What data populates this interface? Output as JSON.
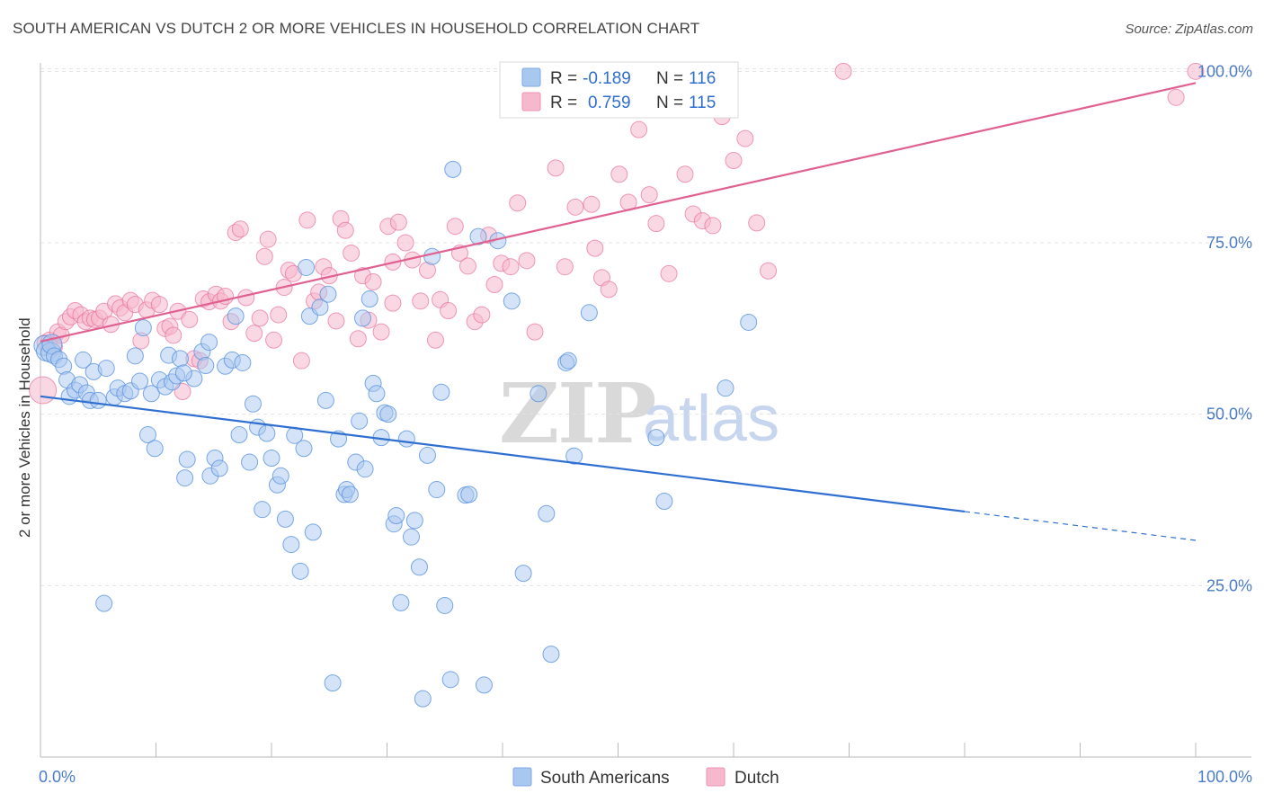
{
  "header": {
    "title": "SOUTH AMERICAN VS DUTCH 2 OR MORE VEHICLES IN HOUSEHOLD CORRELATION CHART",
    "source": "Source: ZipAtlas.com"
  },
  "watermark": {
    "zip": "ZIP",
    "atlas": "atlas"
  },
  "legend": {
    "rows": [
      {
        "r_label": "R =",
        "r_value": "-0.189",
        "n_label": "N =",
        "n_value": "116",
        "color": "#a9c8f0"
      },
      {
        "r_label": "R =",
        "r_value": "0.759",
        "n_label": "N =",
        "n_value": "115",
        "color": "#f6b8cc"
      }
    ]
  },
  "bottom_legend": [
    {
      "label": "South Americans",
      "color": "#a9c8f0"
    },
    {
      "label": "Dutch",
      "color": "#f6b8cc"
    }
  ],
  "chart_data": {
    "type": "scatter",
    "title": "SOUTH AMERICAN VS DUTCH 2 OR MORE VEHICLES IN HOUSEHOLD CORRELATION CHART",
    "xlabel": "",
    "ylabel": "2 or more Vehicles in Household",
    "xlim": [
      0,
      100
    ],
    "ylim": [
      0,
      103
    ],
    "x_tick_labels": [
      "0.0%",
      "100.0%"
    ],
    "y_tick_labels": [
      "25.0%",
      "50.0%",
      "75.0%",
      "100.0%"
    ],
    "y_ticks": [
      25,
      50,
      75,
      100
    ],
    "grid": true,
    "colors": {
      "south_american": "#5b93e0",
      "south_american_fill": "#a9c8f0",
      "dutch": "#e8709a",
      "dutch_fill": "#f6b8cc",
      "blue_line": "#2f6fd0",
      "pink_line": "#e0608f"
    },
    "series": [
      {
        "name": "South Americans",
        "trend": {
          "x": [
            0,
            80
          ],
          "y": [
            52.6,
            35.8
          ],
          "dashed_to": [
            100,
            31.6
          ]
        },
        "points": [
          [
            0.3,
            60.0
          ],
          [
            0.5,
            59.2
          ],
          [
            0.9,
            59.0
          ],
          [
            1.0,
            60.2
          ],
          [
            1.2,
            58.5
          ],
          [
            1.6,
            58.0
          ],
          [
            2.0,
            57.0
          ],
          [
            2.3,
            55.0
          ],
          [
            2.5,
            52.6
          ],
          [
            3.0,
            53.5
          ],
          [
            3.4,
            54.3
          ],
          [
            3.7,
            57.9
          ],
          [
            4.0,
            53.1
          ],
          [
            4.3,
            52.0
          ],
          [
            4.6,
            56.2
          ],
          [
            5.0,
            52.0
          ],
          [
            5.7,
            56.7
          ],
          [
            6.4,
            52.5
          ],
          [
            6.7,
            53.8
          ],
          [
            7.3,
            53.0
          ],
          [
            7.8,
            53.4
          ],
          [
            8.2,
            58.5
          ],
          [
            8.6,
            54.8
          ],
          [
            8.9,
            62.6
          ],
          [
            9.3,
            47.0
          ],
          [
            9.6,
            53.0
          ],
          [
            9.9,
            45.0
          ],
          [
            10.3,
            55.0
          ],
          [
            10.8,
            54.0
          ],
          [
            11.1,
            58.6
          ],
          [
            11.4,
            54.7
          ],
          [
            11.8,
            55.6
          ],
          [
            12.1,
            58.1
          ],
          [
            12.5,
            40.7
          ],
          [
            12.7,
            43.4
          ],
          [
            13.3,
            55.2
          ],
          [
            14.0,
            59.1
          ],
          [
            14.3,
            57.1
          ],
          [
            14.6,
            60.5
          ],
          [
            14.7,
            41.0
          ],
          [
            15.1,
            43.6
          ],
          [
            15.5,
            42.1
          ],
          [
            16.0,
            57.0
          ],
          [
            16.6,
            57.9
          ],
          [
            16.9,
            64.3
          ],
          [
            17.2,
            47.0
          ],
          [
            17.5,
            57.5
          ],
          [
            18.1,
            43.0
          ],
          [
            18.4,
            51.5
          ],
          [
            18.8,
            48.1
          ],
          [
            19.2,
            36.1
          ],
          [
            19.6,
            47.2
          ],
          [
            20.0,
            43.6
          ],
          [
            20.5,
            39.7
          ],
          [
            20.8,
            41.0
          ],
          [
            21.2,
            34.7
          ],
          [
            21.7,
            31.0
          ],
          [
            22.0,
            46.9
          ],
          [
            22.5,
            27.1
          ],
          [
            22.8,
            45.0
          ],
          [
            23.0,
            71.4
          ],
          [
            23.3,
            64.3
          ],
          [
            23.6,
            32.8
          ],
          [
            24.2,
            65.6
          ],
          [
            24.7,
            52.0
          ],
          [
            24.9,
            67.5
          ],
          [
            25.3,
            10.8
          ],
          [
            25.8,
            46.4
          ],
          [
            26.3,
            38.3
          ],
          [
            26.5,
            39.0
          ],
          [
            26.8,
            38.3
          ],
          [
            27.3,
            43.0
          ],
          [
            27.6,
            49.0
          ],
          [
            27.9,
            64.0
          ],
          [
            28.1,
            42.0
          ],
          [
            28.5,
            66.8
          ],
          [
            28.8,
            54.5
          ],
          [
            29.1,
            53.0
          ],
          [
            29.5,
            46.6
          ],
          [
            29.8,
            50.2
          ],
          [
            30.1,
            50.0
          ],
          [
            30.6,
            34.0
          ],
          [
            30.8,
            35.2
          ],
          [
            31.2,
            22.5
          ],
          [
            31.7,
            46.4
          ],
          [
            32.1,
            32.1
          ],
          [
            32.4,
            34.5
          ],
          [
            32.8,
            27.7
          ],
          [
            33.1,
            8.5
          ],
          [
            33.5,
            44.0
          ],
          [
            33.9,
            73.0
          ],
          [
            34.3,
            39.0
          ],
          [
            34.7,
            53.2
          ],
          [
            35.0,
            22.1
          ],
          [
            35.5,
            11.3
          ],
          [
            35.7,
            85.7
          ],
          [
            36.8,
            38.2
          ],
          [
            37.1,
            38.3
          ],
          [
            37.9,
            75.9
          ],
          [
            38.4,
            10.5
          ],
          [
            39.6,
            75.3
          ],
          [
            40.8,
            66.5
          ],
          [
            41.8,
            26.8
          ],
          [
            43.1,
            53.0
          ],
          [
            43.8,
            35.5
          ],
          [
            44.2,
            15.0
          ],
          [
            45.5,
            57.5
          ],
          [
            45.7,
            57.8
          ],
          [
            46.2,
            43.9
          ],
          [
            47.5,
            64.8
          ],
          [
            53.3,
            46.6
          ],
          [
            54.0,
            37.3
          ],
          [
            59.3,
            53.8
          ],
          [
            61.3,
            63.4
          ],
          [
            5.5,
            22.4
          ],
          [
            12.4,
            56.0
          ]
        ]
      },
      {
        "name": "Dutch",
        "trend": {
          "x": [
            0,
            100
          ],
          "y": [
            60.6,
            98.3
          ]
        },
        "points": [
          [
            0.2,
            53.5
          ],
          [
            0.4,
            60.4
          ],
          [
            0.8,
            60.8
          ],
          [
            1.2,
            59.8
          ],
          [
            1.5,
            62.0
          ],
          [
            1.8,
            61.5
          ],
          [
            2.2,
            63.5
          ],
          [
            2.6,
            64.2
          ],
          [
            3.0,
            65.1
          ],
          [
            3.5,
            64.5
          ],
          [
            3.9,
            63.5
          ],
          [
            4.3,
            64.0
          ],
          [
            4.7,
            63.8
          ],
          [
            5.1,
            64.0
          ],
          [
            5.5,
            65.0
          ],
          [
            6.1,
            63.1
          ],
          [
            6.5,
            66.1
          ],
          [
            6.9,
            65.5
          ],
          [
            7.3,
            64.8
          ],
          [
            7.8,
            66.6
          ],
          [
            8.2,
            66.0
          ],
          [
            8.7,
            60.7
          ],
          [
            9.2,
            65.2
          ],
          [
            9.7,
            66.6
          ],
          [
            10.3,
            66.0
          ],
          [
            10.8,
            62.5
          ],
          [
            11.2,
            62.8
          ],
          [
            11.5,
            61.5
          ],
          [
            11.9,
            65.0
          ],
          [
            12.3,
            53.3
          ],
          [
            12.9,
            63.8
          ],
          [
            13.3,
            58.1
          ],
          [
            13.8,
            57.8
          ],
          [
            14.1,
            66.8
          ],
          [
            14.6,
            66.4
          ],
          [
            15.2,
            67.5
          ],
          [
            15.6,
            66.5
          ],
          [
            16.0,
            67.2
          ],
          [
            16.5,
            63.5
          ],
          [
            16.9,
            76.5
          ],
          [
            17.3,
            77.0
          ],
          [
            17.8,
            67.0
          ],
          [
            18.5,
            61.8
          ],
          [
            19.0,
            64.0
          ],
          [
            19.4,
            73.0
          ],
          [
            19.7,
            75.5
          ],
          [
            20.2,
            60.8
          ],
          [
            20.6,
            64.5
          ],
          [
            21.1,
            68.5
          ],
          [
            21.5,
            71.0
          ],
          [
            21.9,
            70.5
          ],
          [
            22.6,
            57.8
          ],
          [
            23.1,
            78.3
          ],
          [
            23.7,
            66.5
          ],
          [
            24.1,
            67.8
          ],
          [
            24.5,
            71.5
          ],
          [
            25.0,
            70.2
          ],
          [
            25.6,
            63.6
          ],
          [
            26.0,
            78.5
          ],
          [
            26.4,
            76.8
          ],
          [
            26.9,
            73.5
          ],
          [
            27.5,
            61.0
          ],
          [
            27.9,
            70.2
          ],
          [
            28.4,
            63.7
          ],
          [
            28.8,
            69.3
          ],
          [
            29.5,
            62.0
          ],
          [
            30.1,
            77.4
          ],
          [
            30.5,
            72.2
          ],
          [
            31.0,
            78.0
          ],
          [
            31.6,
            75.0
          ],
          [
            32.2,
            72.5
          ],
          [
            32.9,
            66.5
          ],
          [
            33.5,
            71.0
          ],
          [
            34.2,
            60.8
          ],
          [
            34.6,
            66.7
          ],
          [
            35.3,
            65.1
          ],
          [
            35.9,
            77.4
          ],
          [
            36.3,
            73.5
          ],
          [
            37.0,
            71.6
          ],
          [
            37.6,
            63.5
          ],
          [
            38.2,
            64.5
          ],
          [
            38.8,
            76.1
          ],
          [
            39.3,
            68.9
          ],
          [
            39.9,
            72.0
          ],
          [
            40.7,
            71.5
          ],
          [
            41.3,
            80.8
          ],
          [
            42.1,
            72.4
          ],
          [
            42.8,
            62.0
          ],
          [
            43.5,
            96.3
          ],
          [
            44.6,
            85.9
          ],
          [
            45.4,
            71.5
          ],
          [
            46.3,
            80.2
          ],
          [
            47.7,
            80.6
          ],
          [
            48.6,
            69.9
          ],
          [
            49.2,
            68.2
          ],
          [
            50.1,
            85.0
          ],
          [
            50.9,
            80.9
          ],
          [
            51.8,
            91.5
          ],
          [
            52.7,
            82.0
          ],
          [
            53.3,
            77.8
          ],
          [
            54.4,
            70.5
          ],
          [
            55.8,
            85.0
          ],
          [
            56.5,
            79.2
          ],
          [
            57.3,
            78.2
          ],
          [
            58.2,
            77.5
          ],
          [
            59.0,
            93.4
          ],
          [
            60.0,
            87.0
          ],
          [
            61.0,
            90.2
          ],
          [
            62.0,
            77.9
          ],
          [
            63.0,
            70.9
          ],
          [
            69.5,
            100.0
          ],
          [
            98.3,
            96.2
          ],
          [
            100.0,
            100.0
          ],
          [
            30.5,
            66.2
          ],
          [
            48.0,
            74.2
          ]
        ]
      }
    ]
  }
}
